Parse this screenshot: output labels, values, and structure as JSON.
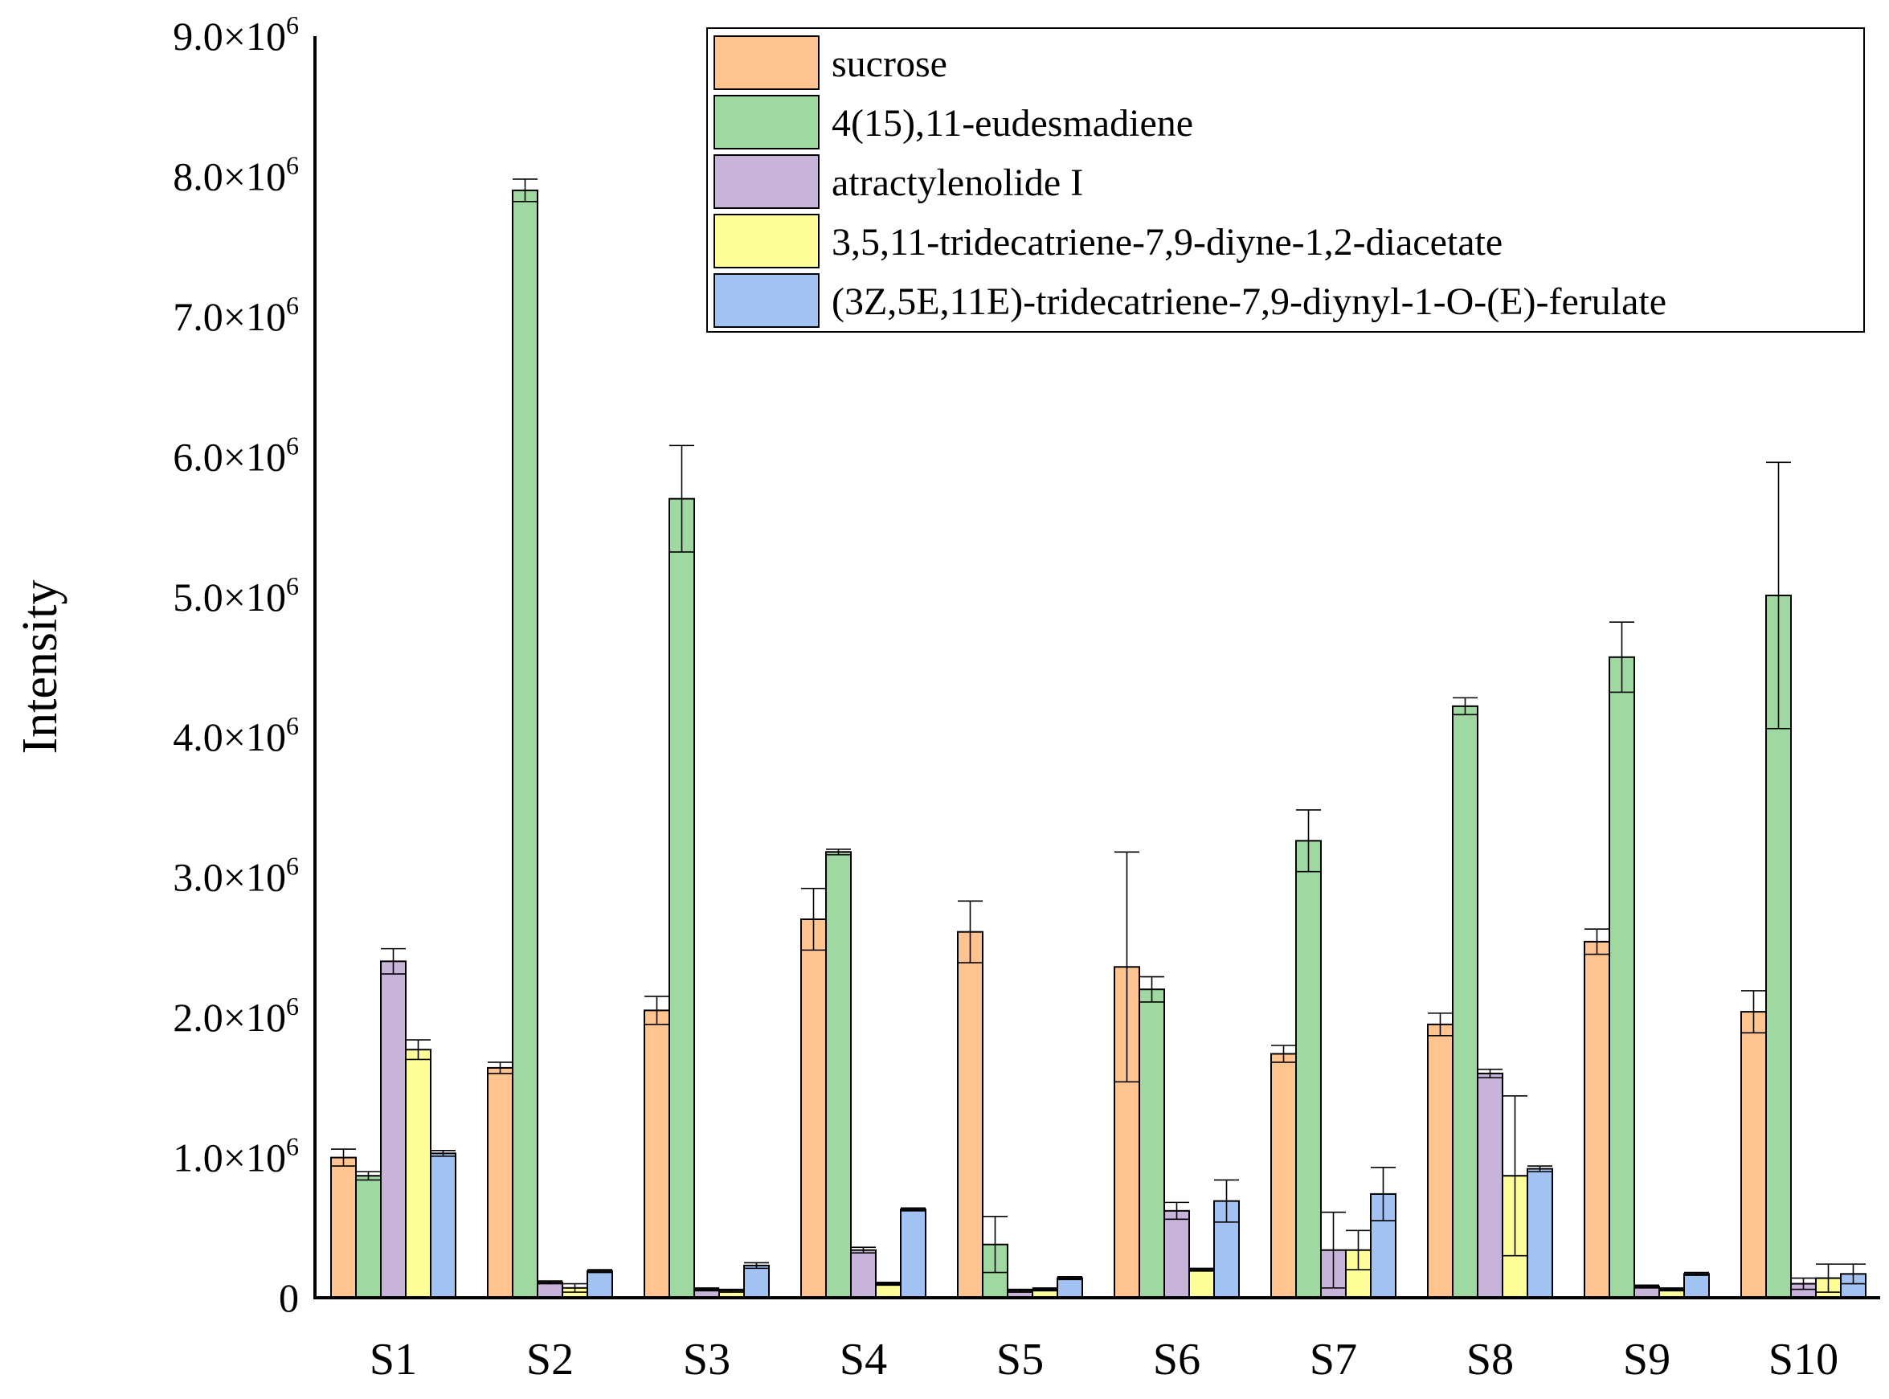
{
  "chart_data": {
    "type": "bar",
    "title": "",
    "xlabel": "",
    "ylabel": "Intensity",
    "ylim": [
      0,
      9000000
    ],
    "grid": false,
    "legend_position": "top-right",
    "categories": [
      "S1",
      "S2",
      "S3",
      "S4",
      "S5",
      "S6",
      "S7",
      "S8",
      "S9",
      "S10"
    ],
    "y_tick_values": [
      0,
      1000000,
      2000000,
      3000000,
      4000000,
      5000000,
      6000000,
      7000000,
      8000000,
      9000000
    ],
    "y_tick_labels": [
      {
        "mantissa": "0",
        "times_base": "",
        "exponent": ""
      },
      {
        "mantissa": "1.0",
        "times_base": "×10",
        "exponent": "6"
      },
      {
        "mantissa": "2.0",
        "times_base": "×10",
        "exponent": "6"
      },
      {
        "mantissa": "3.0",
        "times_base": "×10",
        "exponent": "6"
      },
      {
        "mantissa": "4.0",
        "times_base": "×10",
        "exponent": "6"
      },
      {
        "mantissa": "5.0",
        "times_base": "×10",
        "exponent": "6"
      },
      {
        "mantissa": "6.0",
        "times_base": "×10",
        "exponent": "6"
      },
      {
        "mantissa": "7.0",
        "times_base": "×10",
        "exponent": "6"
      },
      {
        "mantissa": "8.0",
        "times_base": "×10",
        "exponent": "6"
      },
      {
        "mantissa": "9.0",
        "times_base": "×10",
        "exponent": "6"
      }
    ],
    "series": [
      {
        "name": "sucrose",
        "color": "#FFC490",
        "values": [
          1000000,
          1640000,
          2050000,
          2700000,
          2610000,
          2360000,
          1740000,
          1950000,
          2540000,
          2040000
        ],
        "errors": [
          60000,
          40000,
          100000,
          220000,
          220000,
          820000,
          60000,
          80000,
          90000,
          150000
        ]
      },
      {
        "name": "4(15),11-eudesmadiene",
        "color": "#9FD8A0",
        "values": [
          870000,
          7900000,
          5700000,
          3180000,
          380000,
          2200000,
          3260000,
          4220000,
          4570000,
          5010000
        ],
        "errors": [
          30000,
          80000,
          380000,
          20000,
          200000,
          90000,
          220000,
          60000,
          250000,
          950000
        ]
      },
      {
        "name": "atractylenolide I",
        "color": "#C8B4DA",
        "values": [
          2400000,
          110000,
          60000,
          340000,
          50000,
          620000,
          340000,
          1600000,
          80000,
          100000
        ],
        "errors": [
          90000,
          10000,
          10000,
          20000,
          10000,
          60000,
          270000,
          30000,
          10000,
          40000
        ]
      },
      {
        "name": "3,5,11-tridecatriene-7,9-diyne-1,2-diacetate",
        "color": "#FFFF99",
        "values": [
          1770000,
          70000,
          50000,
          100000,
          60000,
          200000,
          340000,
          870000,
          60000,
          140000
        ],
        "errors": [
          70000,
          30000,
          10000,
          10000,
          10000,
          10000,
          140000,
          570000,
          10000,
          100000
        ]
      },
      {
        "name": "(3Z,5E,11E)-tridecatriene-7,9-diynyl-1-O-(E)-ferulate",
        "color": "#A2C2F2",
        "values": [
          1030000,
          190000,
          230000,
          630000,
          140000,
          690000,
          740000,
          920000,
          170000,
          170000
        ],
        "errors": [
          20000,
          10000,
          20000,
          10000,
          10000,
          150000,
          190000,
          20000,
          10000,
          70000
        ]
      }
    ]
  }
}
